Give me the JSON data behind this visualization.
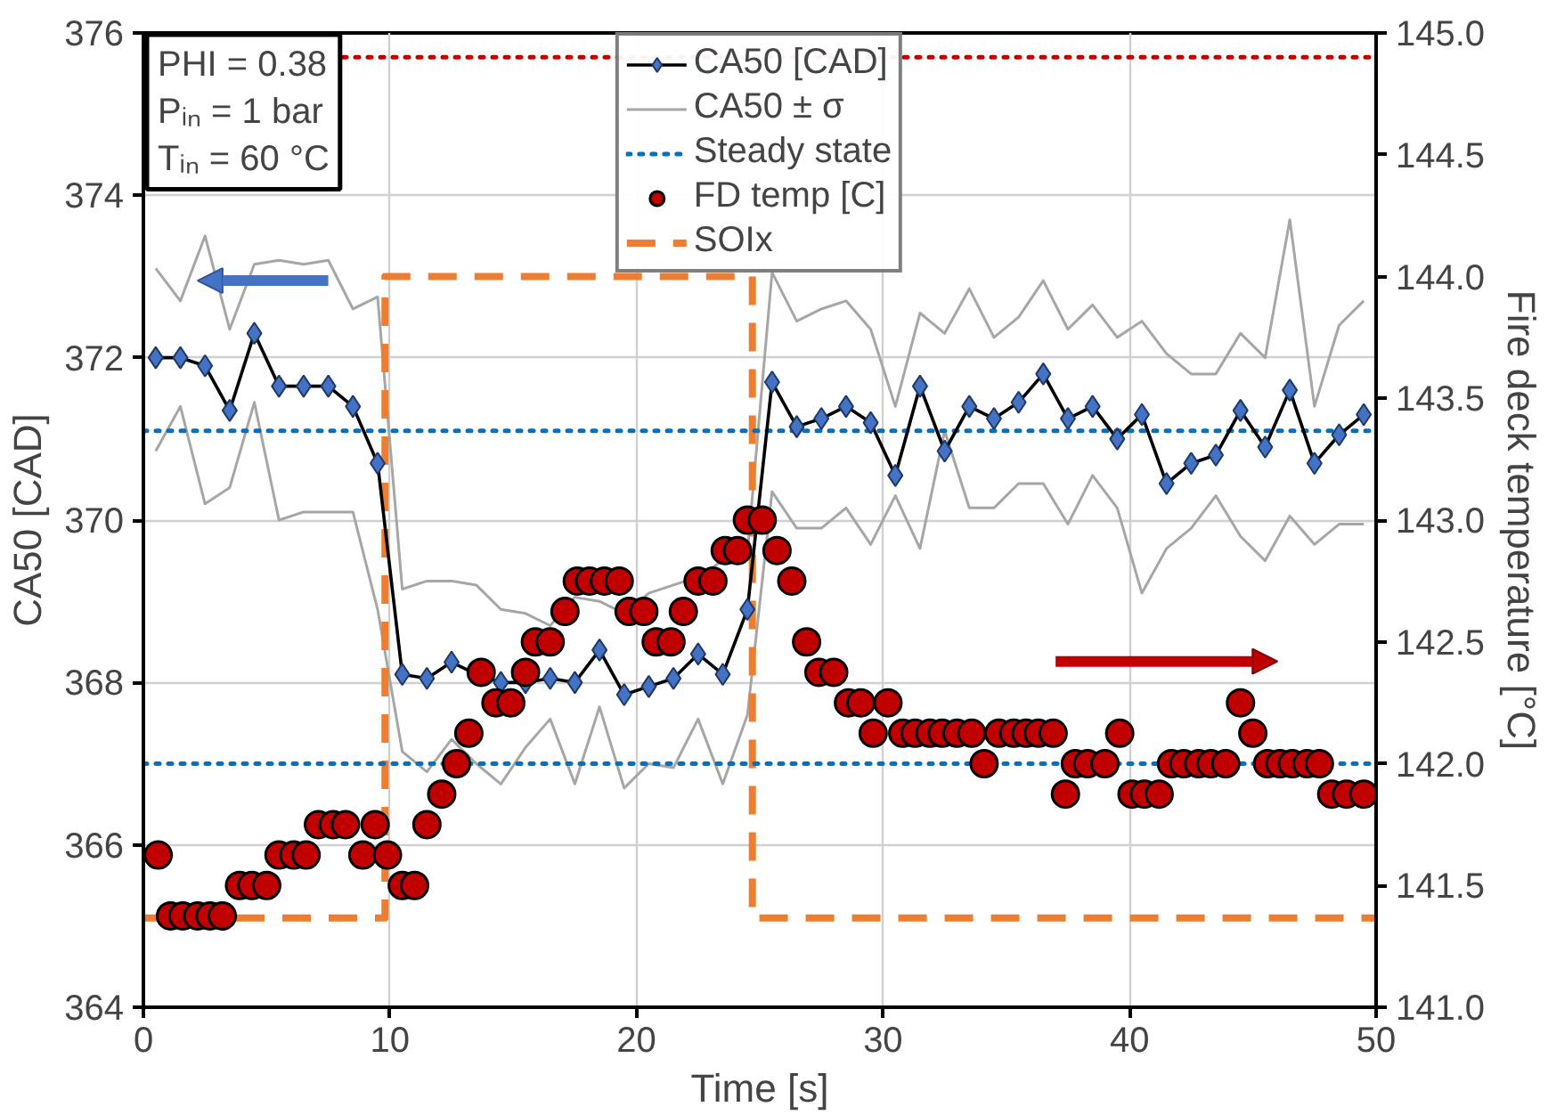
{
  "chart_data": {
    "type": "line",
    "xlabel": "Time [s]",
    "ylabel": "CA50 [CAD]",
    "y2label": "Fire deck temperature [°C]",
    "annotations": [
      "PHI = 0.38",
      "Pᵢₙ = 1 bar",
      "Tᵢₙ = 60 °C"
    ],
    "x": [
      0.5,
      1.5,
      2.5,
      3.5,
      4.5,
      5.5,
      6.5,
      7.5,
      8.5,
      9.5,
      10.5,
      11.5,
      12.5,
      13.5,
      14.5,
      15.5,
      16.5,
      17.5,
      18.5,
      19.5,
      20.5,
      21.5,
      22.5,
      23.5,
      24.5,
      25.5,
      26.5,
      27.5,
      28.5,
      29.5,
      30.5,
      31.5,
      32.5,
      33.5,
      34.5,
      35.5,
      36.5,
      37.5,
      38.5,
      39.5,
      40.5,
      41.5,
      42.5,
      43.5,
      44.5,
      45.5,
      46.5,
      47.5,
      48.5,
      49.5
    ],
    "series": [
      {
        "name": "CA50 [CAD]",
        "marker": "diamond",
        "color": "#4472c4",
        "values": [
          372.0,
          372.0,
          371.9,
          371.35,
          372.3,
          371.65,
          371.65,
          371.65,
          371.4,
          370.7,
          368.1,
          368.05,
          368.25,
          368.1,
          368.0,
          368.0,
          368.05,
          368.0,
          368.4,
          367.85,
          367.95,
          368.05,
          368.35,
          368.1,
          368.9,
          371.7,
          371.15,
          371.25,
          371.4,
          371.2,
          370.55,
          371.65,
          370.85,
          371.4,
          371.25,
          371.45,
          371.8,
          371.25,
          371.4,
          371.0,
          371.3,
          370.45,
          370.7,
          370.8,
          371.35,
          370.9,
          371.6,
          370.7,
          371.05,
          371.3
        ]
      },
      {
        "name": "CA50 ± σ",
        "marker": "none",
        "color": "#a6a6a6",
        "values": [
          373.1,
          372.7,
          373.5,
          372.35,
          373.15,
          373.2,
          373.15,
          373.2,
          372.6,
          372.75,
          369.15,
          369.25,
          369.25,
          369.2,
          368.9,
          368.85,
          368.7,
          369.05,
          369.0,
          368.85,
          369.1,
          369.2,
          369.3,
          369.5,
          369.6,
          373.05,
          372.45,
          372.6,
          372.7,
          372.35,
          371.4,
          372.55,
          372.3,
          372.85,
          372.25,
          372.5,
          372.95,
          372.35,
          372.65,
          372.25,
          372.45,
          372.05,
          371.8,
          371.8,
          372.3,
          372.0,
          373.7,
          371.4,
          372.4,
          372.7
        ]
      },
      {
        "marker": "none",
        "color": "#a6a6a6",
        "values": [
          370.85,
          371.4,
          370.2,
          370.4,
          371.45,
          370.0,
          370.1,
          370.1,
          370.1,
          368.9,
          367.15,
          366.9,
          367.3,
          367.0,
          366.75,
          367.2,
          367.55,
          366.75,
          367.7,
          366.7,
          367.0,
          366.95,
          367.55,
          366.75,
          367.6,
          370.35,
          369.9,
          369.9,
          370.15,
          369.7,
          370.3,
          369.65,
          371.1,
          370.15,
          370.15,
          370.45,
          370.45,
          369.95,
          370.55,
          370.15,
          369.1,
          369.65,
          369.9,
          370.3,
          369.8,
          369.5,
          370.05,
          369.7,
          369.95,
          369.95
        ]
      },
      {
        "name": "FD temp [C]",
        "type": "scatter",
        "marker": "circle",
        "axis": "y2",
        "color": "#c00000",
        "x": [
          0.6,
          1.1,
          1.6,
          2.2,
          2.7,
          3.2,
          3.9,
          4.4,
          5.0,
          5.5,
          6.1,
          6.6,
          7.1,
          7.7,
          8.2,
          8.9,
          9.4,
          9.9,
          10.5,
          11.0,
          11.5,
          12.1,
          12.7,
          13.2,
          13.7,
          14.3,
          14.9,
          15.5,
          15.9,
          16.5,
          17.1,
          17.6,
          18.1,
          18.7,
          19.3,
          19.7,
          20.3,
          20.8,
          21.4,
          21.9,
          22.5,
          23.1,
          23.6,
          24.1,
          24.5,
          25.1,
          25.7,
          26.3,
          26.9,
          27.4,
          28.0,
          28.6,
          29.1,
          29.6,
          30.2,
          30.8,
          31.3,
          31.9,
          32.4,
          33.0,
          33.6,
          34.1,
          34.7,
          35.3,
          35.8,
          36.3,
          36.9,
          37.4,
          37.8,
          38.3,
          39.0,
          39.6,
          40.1,
          40.6,
          41.2,
          41.7,
          42.2,
          42.8,
          43.3,
          43.9,
          44.5,
          45.0,
          45.6,
          46.1,
          46.6,
          47.2,
          47.7,
          48.2,
          48.8,
          49.5
        ],
        "values": [
          141.625,
          141.375,
          141.375,
          141.375,
          141.375,
          141.375,
          141.5,
          141.5,
          141.5,
          141.625,
          141.625,
          141.625,
          141.75,
          141.75,
          141.75,
          141.625,
          141.75,
          141.625,
          141.5,
          141.5,
          141.75,
          141.875,
          142.0,
          142.125,
          142.375,
          142.25,
          142.25,
          142.375,
          142.5,
          142.5,
          142.625,
          142.75,
          142.75,
          142.75,
          142.75,
          142.625,
          142.625,
          142.5,
          142.5,
          142.625,
          142.75,
          142.75,
          142.875,
          142.875,
          143.0,
          143.0,
          142.875,
          142.75,
          142.5,
          142.375,
          142.375,
          142.25,
          142.25,
          142.125,
          142.25,
          142.125,
          142.125,
          142.125,
          142.125,
          142.125,
          142.125,
          142.0,
          142.125,
          142.125,
          142.125,
          142.125,
          142.125,
          141.875,
          142.0,
          142.0,
          142.0,
          142.125,
          141.875,
          141.875,
          141.875,
          142.0,
          142.0,
          142.0,
          142.0,
          142.0,
          142.25,
          142.125,
          142.0,
          142.0,
          142.0,
          142.0,
          142.0,
          141.875,
          141.875,
          141.875
        ]
      },
      {
        "name": "SOIx",
        "marker": "none",
        "line_style": "dashed",
        "color": "#ed7d31",
        "x": [
          0,
          9.8,
          9.8,
          24.7,
          24.7,
          50
        ],
        "values": [
          365.1,
          365.1,
          373.0,
          373.0,
          365.1,
          365.1
        ]
      }
    ],
    "ref_lines": [
      {
        "axis": "y",
        "value": 371.1,
        "label": "Steady state",
        "color": "#0070c0",
        "line_style": "dotted"
      },
      {
        "axis": "y2",
        "value": 142.0,
        "color": "#0070c0",
        "line_style": "dotted"
      },
      {
        "axis": "y2",
        "value": 144.9,
        "color": "#c00000",
        "line_style": "dotted"
      }
    ],
    "xlim": [
      0,
      50
    ],
    "xticks": [
      0,
      10,
      20,
      30,
      40,
      50
    ],
    "ylim": [
      364,
      376
    ],
    "yticks": [
      364,
      366,
      368,
      370,
      372,
      374,
      376
    ],
    "y2lim": [
      141.0,
      145.0
    ],
    "y2ticks": [
      {
        "value": 141.0,
        "label": "141.0"
      },
      {
        "value": 141.5,
        "label": "141.5"
      },
      {
        "value": 142.0,
        "label": "142.0"
      },
      {
        "value": 142.5,
        "label": "142.5"
      },
      {
        "value": 143.0,
        "label": "143.0"
      },
      {
        "value": 143.5,
        "label": "143.5"
      },
      {
        "value": 144.0,
        "label": "144.0"
      },
      {
        "value": 144.5,
        "label": "144.5"
      },
      {
        "value": 145.0,
        "label": "145.0"
      }
    ],
    "grid": true,
    "legend": "top"
  }
}
